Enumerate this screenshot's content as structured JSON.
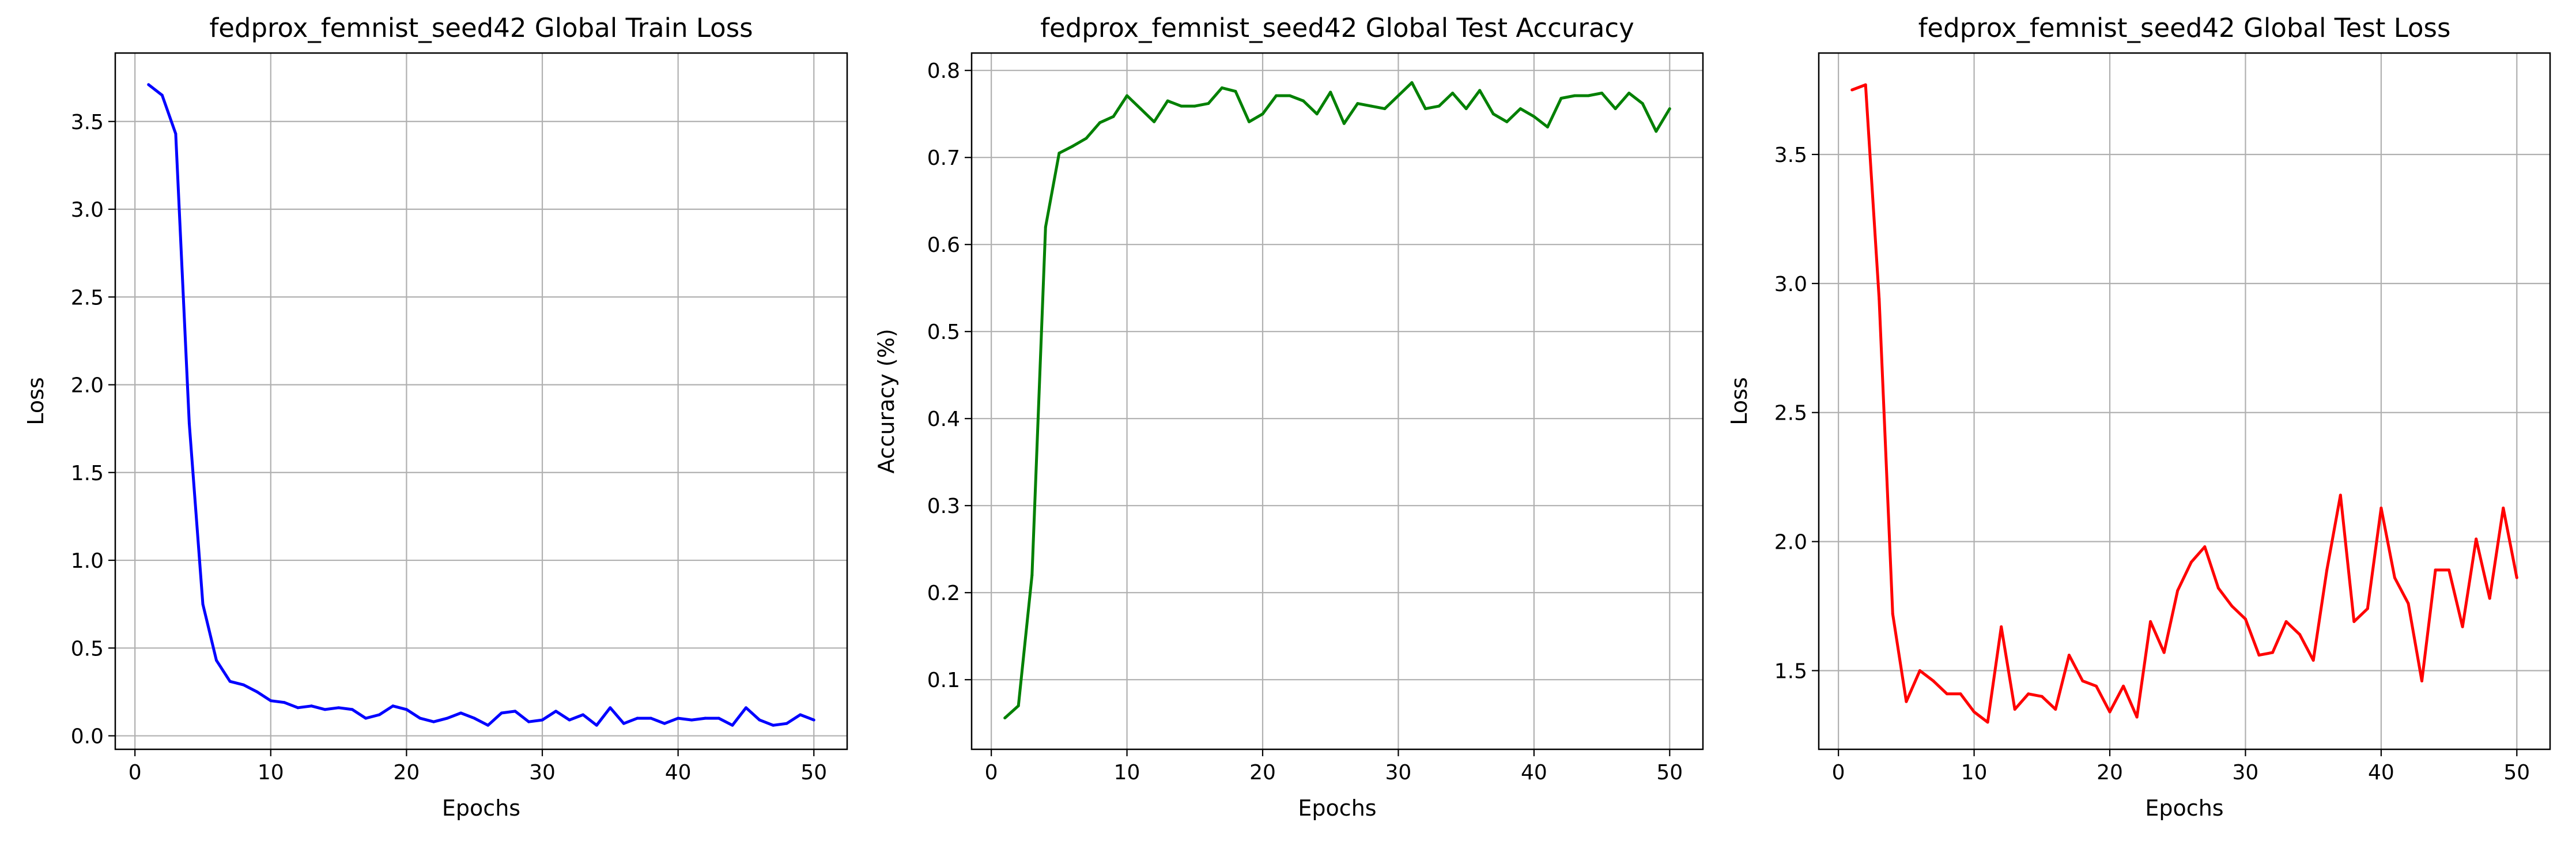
{
  "chart_data": [
    {
      "type": "line",
      "title": "fedprox_femnist_seed42 Global Train Loss",
      "xlabel": "Epochs",
      "ylabel": "Loss",
      "xlim": [
        -1.45,
        52.45
      ],
      "ylim": [
        -0.077,
        3.89
      ],
      "xticks": [
        0,
        10,
        20,
        30,
        40,
        50
      ],
      "xtick_labels": [
        "0",
        "10",
        "20",
        "30",
        "40",
        "50"
      ],
      "yticks": [
        0.0,
        0.5,
        1.0,
        1.5,
        2.0,
        2.5,
        3.0,
        3.5
      ],
      "ytick_labels": [
        "0.0",
        "0.5",
        "1.0",
        "1.5",
        "2.0",
        "2.5",
        "3.0",
        "3.5"
      ],
      "grid": true,
      "color": "#0000ff",
      "series": [
        {
          "x": [
            1,
            2,
            3,
            4,
            5,
            6,
            7,
            8,
            9,
            10,
            11,
            12,
            13,
            14,
            15,
            16,
            17,
            18,
            19,
            20,
            21,
            22,
            23,
            24,
            25,
            26,
            27,
            28,
            29,
            30,
            31,
            32,
            33,
            34,
            35,
            36,
            37,
            38,
            39,
            40,
            41,
            42,
            43,
            44,
            45,
            46,
            47,
            48,
            49,
            50
          ],
          "values": [
            3.71,
            3.65,
            3.43,
            1.78,
            0.75,
            0.43,
            0.31,
            0.29,
            0.25,
            0.2,
            0.19,
            0.16,
            0.17,
            0.15,
            0.16,
            0.15,
            0.1,
            0.12,
            0.17,
            0.15,
            0.1,
            0.08,
            0.1,
            0.13,
            0.1,
            0.06,
            0.13,
            0.14,
            0.08,
            0.09,
            0.14,
            0.09,
            0.12,
            0.06,
            0.16,
            0.07,
            0.1,
            0.1,
            0.07,
            0.1,
            0.09,
            0.1,
            0.1,
            0.06,
            0.16,
            0.09,
            0.06,
            0.07,
            0.12,
            0.09
          ]
        }
      ]
    },
    {
      "type": "line",
      "title": "fedprox_femnist_seed42 Global Test Accuracy",
      "xlabel": "Epochs",
      "ylabel": "Accuracy (%)",
      "xlim": [
        -1.45,
        52.45
      ],
      "ylim": [
        0.02,
        0.82
      ],
      "xticks": [
        0,
        10,
        20,
        30,
        40,
        50
      ],
      "xtick_labels": [
        "0",
        "10",
        "20",
        "30",
        "40",
        "50"
      ],
      "yticks": [
        0.1,
        0.2,
        0.3,
        0.4,
        0.5,
        0.6,
        0.7,
        0.8
      ],
      "ytick_labels": [
        "0.1",
        "0.2",
        "0.3",
        "0.4",
        "0.5",
        "0.6",
        "0.7",
        "0.8"
      ],
      "grid": true,
      "color": "#008000",
      "series": [
        {
          "x": [
            1,
            2,
            3,
            4,
            5,
            6,
            7,
            8,
            9,
            10,
            11,
            12,
            13,
            14,
            15,
            16,
            17,
            18,
            19,
            20,
            21,
            22,
            23,
            24,
            25,
            26,
            27,
            28,
            29,
            30,
            31,
            32,
            33,
            34,
            35,
            36,
            37,
            38,
            39,
            40,
            41,
            42,
            43,
            44,
            45,
            46,
            47,
            48,
            49,
            50
          ],
          "values": [
            0.056,
            0.07,
            0.22,
            0.62,
            0.705,
            0.713,
            0.722,
            0.74,
            0.747,
            0.771,
            0.756,
            0.741,
            0.765,
            0.759,
            0.759,
            0.762,
            0.78,
            0.776,
            0.741,
            0.75,
            0.771,
            0.771,
            0.765,
            0.75,
            0.775,
            0.739,
            0.762,
            0.759,
            0.756,
            0.771,
            0.786,
            0.756,
            0.759,
            0.774,
            0.756,
            0.777,
            0.75,
            0.741,
            0.756,
            0.747,
            0.735,
            0.768,
            0.771,
            0.771,
            0.774,
            0.756,
            0.774,
            0.762,
            0.73,
            0.756
          ]
        }
      ]
    },
    {
      "type": "line",
      "title": "fedprox_femnist_seed42 Global Test Loss",
      "xlabel": "Epochs",
      "ylabel": "Loss",
      "xlim": [
        -1.45,
        52.45
      ],
      "ylim": [
        1.1951,
        3.893
      ],
      "xticks": [
        0,
        10,
        20,
        30,
        40,
        50
      ],
      "xtick_labels": [
        "0",
        "10",
        "20",
        "30",
        "40",
        "50"
      ],
      "yticks": [
        1.5,
        2.0,
        2.5,
        3.0,
        3.5
      ],
      "ytick_labels": [
        "1.5",
        "2.0",
        "2.5",
        "3.0",
        "3.5"
      ],
      "grid": true,
      "color": "#ff0000",
      "series": [
        {
          "x": [
            1,
            2,
            3,
            4,
            5,
            6,
            7,
            8,
            9,
            10,
            11,
            12,
            13,
            14,
            15,
            16,
            17,
            18,
            19,
            20,
            21,
            22,
            23,
            24,
            25,
            26,
            27,
            28,
            29,
            30,
            31,
            32,
            33,
            34,
            35,
            36,
            37,
            38,
            39,
            40,
            41,
            42,
            43,
            44,
            45,
            46,
            47,
            48,
            49,
            50
          ],
          "values": [
            3.75,
            3.77,
            2.94,
            1.72,
            1.38,
            1.5,
            1.46,
            1.41,
            1.41,
            1.34,
            1.3,
            1.67,
            1.35,
            1.41,
            1.4,
            1.35,
            1.56,
            1.46,
            1.44,
            1.34,
            1.44,
            1.32,
            1.69,
            1.57,
            1.81,
            1.92,
            1.98,
            1.82,
            1.75,
            1.7,
            1.56,
            1.57,
            1.69,
            1.64,
            1.54,
            1.89,
            2.18,
            1.69,
            1.74,
            2.13,
            1.86,
            1.76,
            1.46,
            1.89,
            1.89,
            1.67,
            2.01,
            1.78,
            2.13,
            1.86
          ]
        }
      ]
    }
  ]
}
